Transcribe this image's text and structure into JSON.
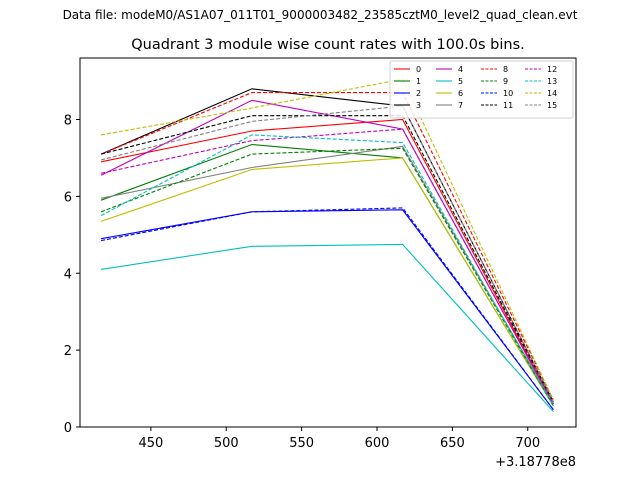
{
  "figure": {
    "suptitle": "Data file: modeM0/AS1A07_011T01_9000003482_23585cztM0_level2_quad_clean.evt"
  },
  "chart_data": {
    "type": "line",
    "title": "Quadrant 3 module wise count rates with 100.0s bins.",
    "xlabel": "",
    "ylabel": "",
    "x_offset_label": "+3.18778e8",
    "x": [
      417,
      517,
      617,
      717
    ],
    "xlim": [
      403,
      732
    ],
    "ylim": [
      0,
      9.6
    ],
    "xticks": [
      450,
      500,
      550,
      600,
      650,
      700
    ],
    "yticks": [
      0,
      2,
      4,
      6,
      8
    ],
    "legend_position": "upper-right",
    "legend_columns": 4,
    "series": [
      {
        "name": "0",
        "color": "#ff0000",
        "dash": "solid",
        "values": [
          6.9,
          7.7,
          8.0,
          0.6
        ]
      },
      {
        "name": "1",
        "color": "#008000",
        "dash": "solid",
        "values": [
          5.9,
          7.35,
          7.0,
          0.55
        ]
      },
      {
        "name": "2",
        "color": "#0000ff",
        "dash": "solid",
        "values": [
          4.9,
          5.6,
          5.65,
          0.45
        ]
      },
      {
        "name": "3",
        "color": "#000000",
        "dash": "solid",
        "values": [
          7.1,
          8.8,
          8.35,
          0.65
        ]
      },
      {
        "name": "4",
        "color": "#bf00bf",
        "dash": "solid",
        "values": [
          6.55,
          8.5,
          7.75,
          0.6
        ]
      },
      {
        "name": "5",
        "color": "#00bfbf",
        "dash": "solid",
        "values": [
          4.1,
          4.7,
          4.75,
          0.4
        ]
      },
      {
        "name": "6",
        "color": "#bfbf00",
        "dash": "solid",
        "values": [
          5.35,
          6.7,
          7.0,
          0.55
        ]
      },
      {
        "name": "7",
        "color": "#808080",
        "dash": "solid",
        "values": [
          5.95,
          6.75,
          7.3,
          0.6
        ]
      },
      {
        "name": "8",
        "color": "#ff0000",
        "dash": "dashed",
        "values": [
          7.1,
          8.7,
          8.7,
          0.7
        ]
      },
      {
        "name": "9",
        "color": "#008000",
        "dash": "dashed",
        "values": [
          5.6,
          7.1,
          7.25,
          0.55
        ]
      },
      {
        "name": "10",
        "color": "#0000ff",
        "dash": "dashed",
        "values": [
          4.85,
          5.6,
          5.7,
          0.45
        ]
      },
      {
        "name": "11",
        "color": "#000000",
        "dash": "dashed",
        "values": [
          7.1,
          8.1,
          8.1,
          0.65
        ]
      },
      {
        "name": "12",
        "color": "#bf00bf",
        "dash": "dashed",
        "values": [
          6.6,
          7.45,
          7.75,
          0.6
        ]
      },
      {
        "name": "13",
        "color": "#00bfbf",
        "dash": "dashed",
        "values": [
          5.5,
          7.6,
          7.4,
          0.55
        ]
      },
      {
        "name": "14",
        "color": "#bfbf00",
        "dash": "dashed",
        "values": [
          7.6,
          8.3,
          9.05,
          0.7
        ]
      },
      {
        "name": "15",
        "color": "#808080",
        "dash": "dashed",
        "values": [
          6.95,
          7.95,
          8.35,
          0.65
        ]
      }
    ]
  }
}
